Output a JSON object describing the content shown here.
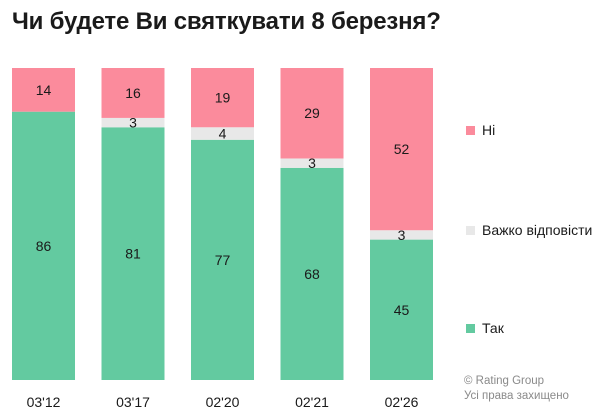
{
  "title": "Чи будете Ви святкувати 8 березня?",
  "legend": [
    {
      "label": "Ні",
      "color": "#fb8b9c"
    },
    {
      "label": "Важко відповісти",
      "color": "#e8e8e8"
    },
    {
      "label": "Так",
      "color": "#63caa0"
    }
  ],
  "credit": {
    "line1": "© Rating Group",
    "line2": "Усі права захищено"
  },
  "chart_data": {
    "type": "bar",
    "stacked": true,
    "title": "Чи будете Ви святкувати 8 березня?",
    "categories": [
      "03'12",
      "03'17",
      "02'20",
      "02'21",
      "02'26"
    ],
    "series": [
      {
        "name": "Так",
        "color": "#63caa0",
        "values": [
          86,
          81,
          77,
          68,
          45
        ],
        "labels": [
          "86",
          "81",
          "77",
          "68",
          "45"
        ]
      },
      {
        "name": "Важко відповісти",
        "color": "#e8e8e8",
        "values": [
          0,
          3,
          4,
          3,
          3
        ],
        "labels": [
          "",
          "3",
          "4",
          "3",
          "3"
        ]
      },
      {
        "name": "Ні",
        "color": "#fb8b9c",
        "values": [
          14,
          16,
          19,
          29,
          52
        ],
        "labels": [
          "14",
          "16",
          "19",
          "29",
          "52"
        ]
      }
    ],
    "ylim": [
      0,
      100
    ],
    "grid": false,
    "legend_position": "right"
  }
}
